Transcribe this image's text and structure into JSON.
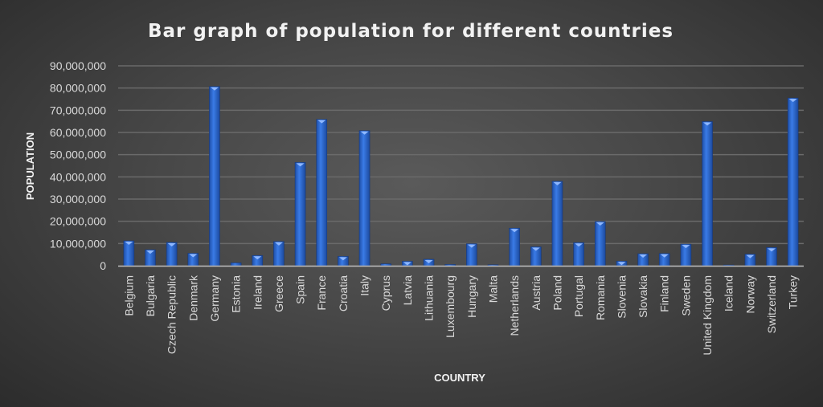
{
  "chart_data": {
    "type": "bar",
    "title": "Bar graph of population for different countries",
    "xlabel": "COUNTRY",
    "ylabel": "POPULATION",
    "ylim": [
      0,
      90000000
    ],
    "yticks": [
      "0",
      "10,000,000",
      "20,000,000",
      "30,000,000",
      "40,000,000",
      "50,000,000",
      "60,000,000",
      "70,000,000",
      "80,000,000",
      "90,000,000"
    ],
    "grid": true,
    "bar_color": "#2f6bd6",
    "categories": [
      "Belgium",
      "Bulgaria",
      "Czech Republic",
      "Denmark",
      "Germany",
      "Estonia",
      "Ireland",
      "Greece",
      "Spain",
      "France",
      "Croatia",
      "Italy",
      "Cyprus",
      "Latvia",
      "Lithuania",
      "Luxembourg",
      "Hungary",
      "Malta",
      "Netherlands",
      "Austria",
      "Poland",
      "Portugal",
      "Romania",
      "Slovenia",
      "Slovakia",
      "Finland",
      "Sweden",
      "United Kingdom",
      "Iceland",
      "Norway",
      "Switzerland",
      "Turkey"
    ],
    "values": [
      11200000,
      7200000,
      10500000,
      5600000,
      80700000,
      1300000,
      4600000,
      10900000,
      46500000,
      65900000,
      4200000,
      60800000,
      860000,
      2000000,
      2900000,
      560000,
      9900000,
      430000,
      16900000,
      8500000,
      38000000,
      10400000,
      19900000,
      2060000,
      5400000,
      5500000,
      9700000,
      64900000,
      330000,
      5200000,
      8200000,
      75500000
    ]
  }
}
